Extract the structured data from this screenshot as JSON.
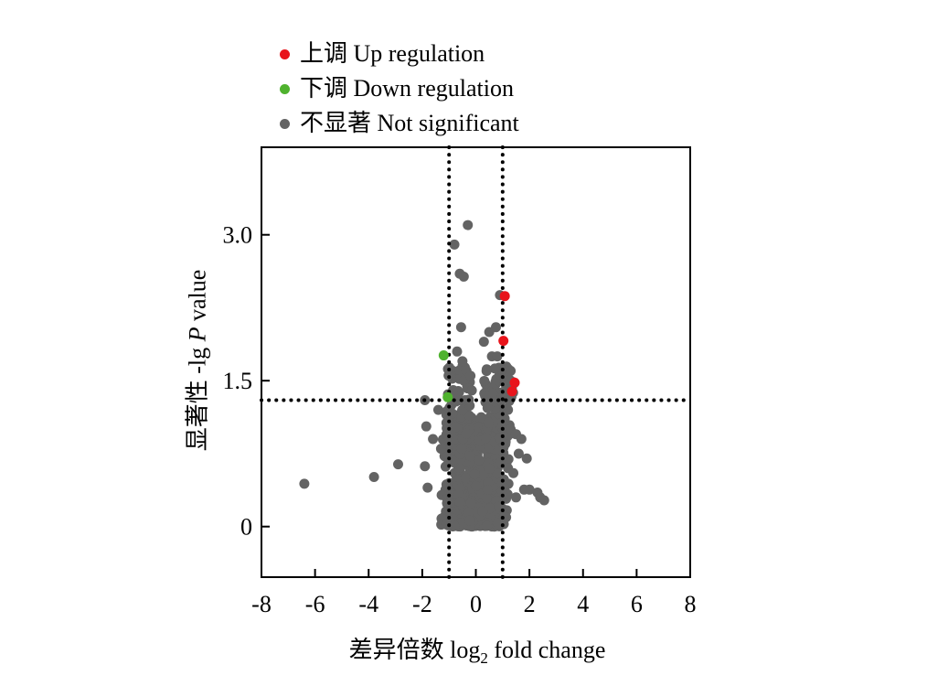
{
  "legend": [
    {
      "label": "上调 Up regulation",
      "color": "#e8141b"
    },
    {
      "label": "下调 Down regulation",
      "color": "#4fb22e"
    },
    {
      "label": "不显著 Not significant",
      "color": "#636363"
    }
  ],
  "axes": {
    "ylabel_prefix": "显著性 -lg ",
    "ylabel_italic": "P",
    "ylabel_suffix": " value",
    "xlabel_prefix": "差异倍数 log",
    "xlabel_sub": "2",
    "xlabel_suffix": " fold change"
  },
  "chart_data": {
    "type": "scatter",
    "xlim": [
      -8,
      8
    ],
    "ylim": [
      -0.52,
      3.9
    ],
    "xticks": [
      -8,
      -6,
      -4,
      -2,
      0,
      2,
      4,
      6,
      8
    ],
    "xtick_labels": [
      "-8",
      "-6",
      "-4",
      "-2",
      "0",
      "2",
      "4",
      "6",
      "8"
    ],
    "yticks": [
      0,
      1.5,
      3.0
    ],
    "ytick_labels": [
      "0",
      "1.5",
      "3.0"
    ],
    "thresholds": {
      "x": [
        -1,
        1
      ],
      "y": 1.3
    },
    "grid": false,
    "legend_position": "top",
    "colors": {
      "up": "#e8141b",
      "down": "#4fb22e",
      "ns": "#636363"
    },
    "series": [
      {
        "name": "上调 Up regulation",
        "color": "#e8141b",
        "points": [
          [
            1.08,
            2.37
          ],
          [
            1.03,
            1.91
          ],
          [
            1.45,
            1.48
          ],
          [
            1.35,
            1.39
          ]
        ]
      },
      {
        "name": "下调 Down regulation",
        "color": "#4fb22e",
        "points": [
          [
            -1.2,
            1.76
          ],
          [
            -1.05,
            1.33
          ]
        ]
      },
      {
        "name": "不显著 Not significant",
        "color": "#636363",
        "points": [
          [
            -6.4,
            0.44
          ],
          [
            -3.8,
            0.51
          ],
          [
            -2.9,
            0.64
          ],
          [
            -1.9,
            0.62
          ],
          [
            -1.8,
            0.4
          ],
          [
            -1.85,
            1.03
          ],
          [
            -1.9,
            1.3
          ],
          [
            -1.6,
            0.9
          ],
          [
            -1.3,
            0.8
          ],
          [
            -1.4,
            1.2
          ],
          [
            -1.1,
            1.15
          ],
          [
            -0.8,
            2.9
          ],
          [
            -0.6,
            2.6
          ],
          [
            -0.45,
            2.57
          ],
          [
            -0.3,
            3.1
          ],
          [
            -0.55,
            2.05
          ],
          [
            -0.7,
            1.8
          ],
          [
            -0.5,
            1.7
          ],
          [
            -0.35,
            1.6
          ],
          [
            -0.2,
            1.55
          ],
          [
            -0.15,
            1.4
          ],
          [
            -0.4,
            1.3
          ],
          [
            -0.6,
            1.3
          ],
          [
            0.4,
            1.6
          ],
          [
            0.6,
            1.75
          ],
          [
            0.8,
            1.75
          ],
          [
            0.9,
            2.38
          ],
          [
            0.75,
            2.05
          ],
          [
            0.5,
            2.0
          ],
          [
            0.3,
            1.9
          ],
          [
            1.2,
            1.2
          ],
          [
            1.3,
            1.0
          ],
          [
            1.5,
            0.95
          ],
          [
            1.6,
            0.75
          ],
          [
            1.7,
            0.9
          ],
          [
            1.2,
            0.6
          ],
          [
            1.4,
            0.55
          ],
          [
            1.8,
            0.38
          ],
          [
            2.0,
            0.38
          ],
          [
            2.3,
            0.35
          ],
          [
            2.4,
            0.3
          ],
          [
            2.55,
            0.27
          ],
          [
            1.5,
            0.3
          ],
          [
            1.1,
            0.85
          ],
          [
            1.9,
            0.7
          ]
        ]
      }
    ]
  }
}
